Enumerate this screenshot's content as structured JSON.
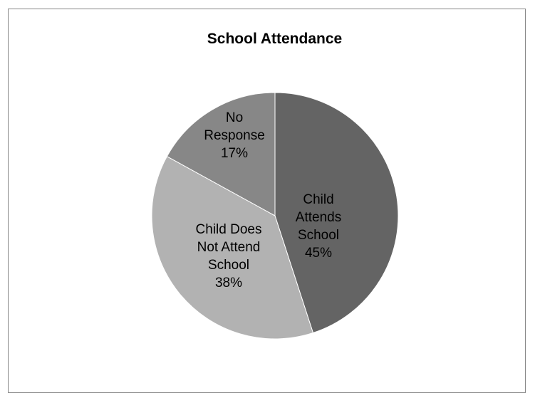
{
  "chart_data": {
    "type": "pie",
    "title": "School Attendance",
    "slices": [
      {
        "label_lines": [
          "Child",
          "Attends",
          "School"
        ],
        "percent_label": "45%",
        "value": 45,
        "color": "#646464"
      },
      {
        "label_lines": [
          "Child Does",
          "Not Attend",
          "School"
        ],
        "percent_label": "38%",
        "value": 38,
        "color": "#b2b2b2"
      },
      {
        "label_lines": [
          "No",
          "Response"
        ],
        "percent_label": "17%",
        "value": 17,
        "color": "#878787"
      }
    ],
    "legend": "none",
    "start_angle": "12 o'clock",
    "direction": "clockwise"
  }
}
